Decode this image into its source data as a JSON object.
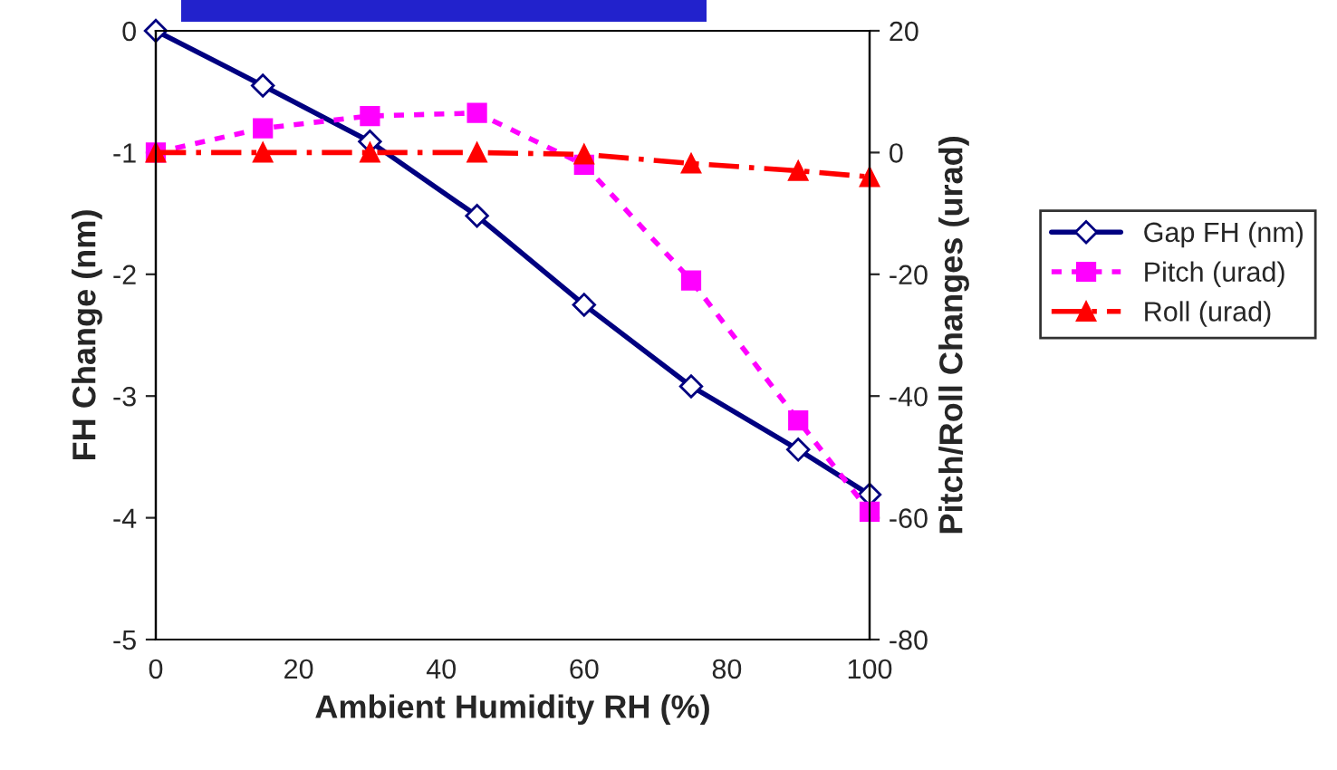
{
  "chart_data": {
    "type": "line",
    "xlabel": "Ambient Humidity RH (%)",
    "ylabel": "FH Change (nm)",
    "y2label": "Pitch/Roll Changes (urad)",
    "x": [
      0,
      15,
      30,
      45,
      60,
      75,
      90,
      100
    ],
    "series": [
      {
        "name": "Gap FH (nm)",
        "color": "#000080",
        "values": [
          0,
          -0.45,
          -0.91,
          -1.52,
          -2.25,
          -2.92,
          -3.44,
          -3.81
        ],
        "marker": "diamond",
        "line_style": "solid"
      },
      {
        "name": "Pitch (urad)",
        "color": "#ff00ff",
        "values": [
          0,
          4,
          6,
          6.5,
          -2,
          -21,
          -44,
          -59
        ],
        "marker": "square",
        "line_style": "dotted",
        "axis": "y2"
      },
      {
        "name": "Roll (urad)",
        "color": "#ff0000",
        "values": [
          0,
          0,
          0,
          0,
          -0.3,
          -1.8,
          -3,
          -4
        ],
        "marker": "triangle",
        "line_style": "dashed",
        "axis": "y2"
      }
    ],
    "xlim": [
      0,
      100
    ],
    "xticks": [
      0,
      20,
      40,
      60,
      80,
      100
    ],
    "ylim": [
      -5,
      0
    ],
    "yticks": [
      -5,
      -4,
      -3,
      -2,
      -1,
      0
    ],
    "y2lim": [
      -80,
      20
    ],
    "y2ticks": [
      -80,
      -60,
      -40,
      -20,
      0,
      20
    ],
    "grid": false,
    "legend": "right"
  }
}
